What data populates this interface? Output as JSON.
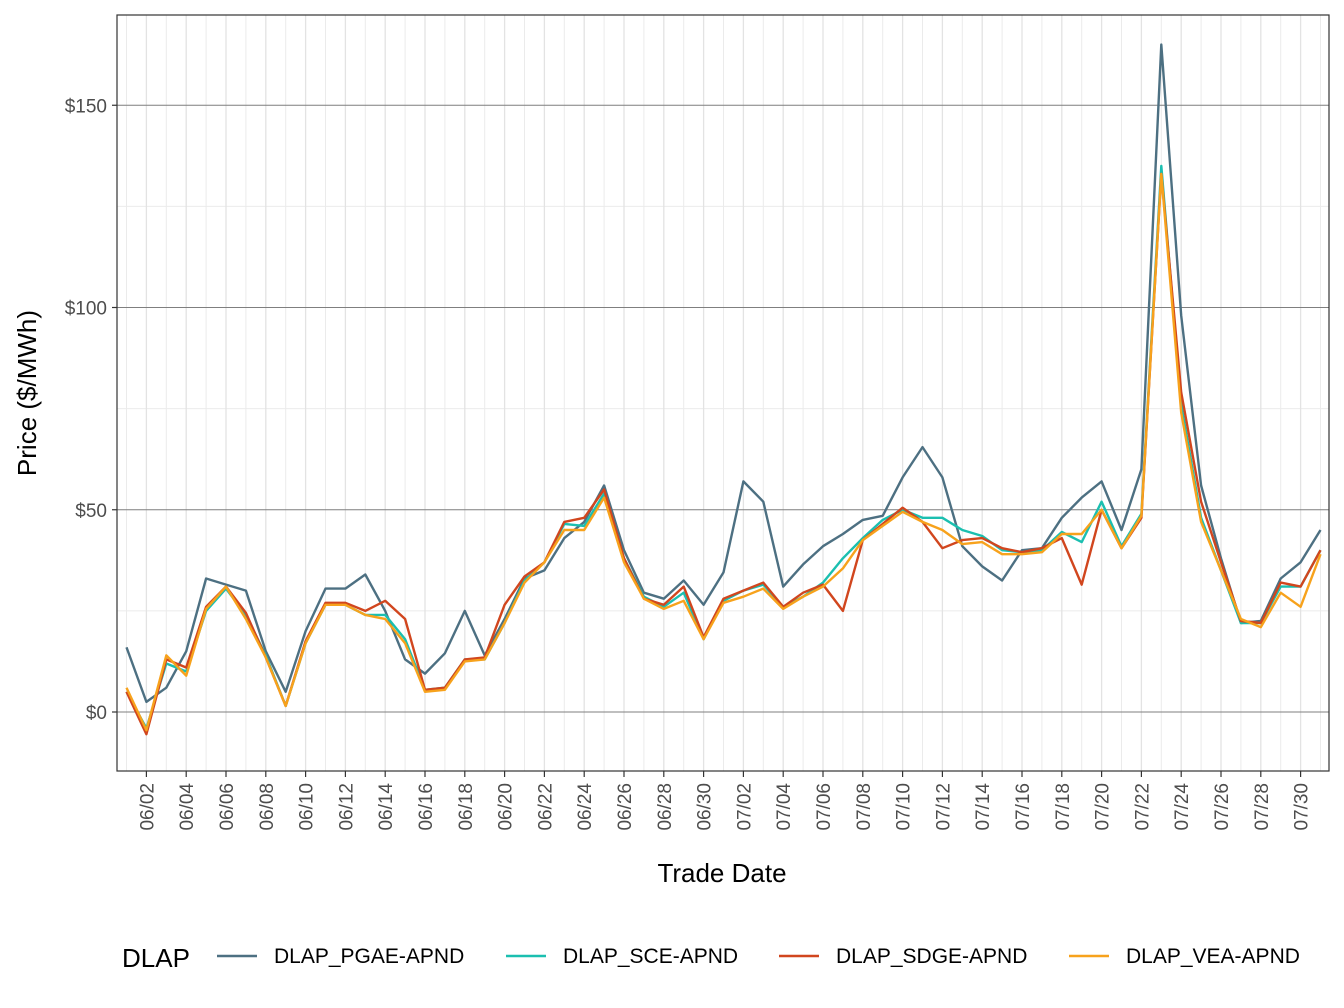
{
  "chart_data": {
    "type": "line",
    "title": "",
    "xlabel": "Trade Date",
    "ylabel": "Price ($/MWh)",
    "ylim": [
      -15,
      172
    ],
    "y_ticks": [
      0,
      50,
      100,
      150
    ],
    "y_tick_labels": [
      "$0",
      "$50",
      "$100",
      "$150"
    ],
    "x_tick_labels": [
      "06/02",
      "06/04",
      "06/06",
      "06/08",
      "06/10",
      "06/12",
      "06/14",
      "06/16",
      "06/18",
      "06/20",
      "06/22",
      "06/24",
      "06/26",
      "06/28",
      "06/30",
      "07/02",
      "07/04",
      "07/06",
      "07/08",
      "07/10",
      "07/12",
      "07/14",
      "07/16",
      "07/18",
      "07/20",
      "07/22",
      "07/24",
      "07/26",
      "07/28",
      "07/30"
    ],
    "x": [
      "06/01",
      "06/02",
      "06/03",
      "06/04",
      "06/05",
      "06/06",
      "06/07",
      "06/08",
      "06/09",
      "06/10",
      "06/11",
      "06/12",
      "06/13",
      "06/14",
      "06/15",
      "06/16",
      "06/17",
      "06/18",
      "06/19",
      "06/20",
      "06/21",
      "06/22",
      "06/23",
      "06/24",
      "06/25",
      "06/26",
      "06/27",
      "06/28",
      "06/29",
      "06/30",
      "07/01",
      "07/02",
      "07/03",
      "07/04",
      "07/05",
      "07/06",
      "07/07",
      "07/08",
      "07/09",
      "07/10",
      "07/11",
      "07/12",
      "07/13",
      "07/14",
      "07/15",
      "07/16",
      "07/17",
      "07/18",
      "07/19",
      "07/20",
      "07/21",
      "07/22",
      "07/23",
      "07/24",
      "07/25",
      "07/26",
      "07/27",
      "07/28",
      "07/29",
      "07/30",
      "07/31"
    ],
    "grid": true,
    "legend": {
      "title": "DLAP",
      "position": "bottom"
    },
    "series": [
      {
        "name": "DLAP_PGAE-APND",
        "color": "#4d7082",
        "values": [
          16,
          2.5,
          6,
          15,
          33,
          31.5,
          30,
          15,
          5,
          20,
          30.5,
          30.5,
          34,
          25,
          13,
          9.5,
          14.5,
          25,
          14,
          23,
          33,
          35,
          43,
          47,
          56,
          40,
          29.5,
          28,
          32.5,
          26.5,
          34.5,
          57,
          52,
          31,
          36.5,
          41,
          44,
          47.5,
          48.5,
          58,
          65.5,
          58,
          41,
          36,
          32.5,
          40,
          40.5,
          48,
          53,
          57,
          45,
          60,
          165,
          98,
          56,
          38,
          22,
          22.5,
          33,
          37,
          45
        ]
      },
      {
        "name": "DLAP_SCE-APND",
        "color": "#1bbfb0",
        "values": [
          5,
          -4,
          12,
          10,
          25,
          30.5,
          24,
          14,
          1.5,
          17,
          26.5,
          26.5,
          24,
          24,
          18,
          5.5,
          6,
          13,
          13,
          22,
          32.5,
          37,
          46.5,
          46,
          54,
          38,
          28.5,
          26,
          29.5,
          18,
          27.5,
          30,
          31.5,
          26,
          28.5,
          32,
          38,
          43,
          47.5,
          50,
          48,
          48,
          45,
          43.5,
          40,
          39.5,
          40,
          44.5,
          42,
          52,
          41,
          49,
          135,
          76,
          48,
          35,
          22,
          22,
          31,
          31,
          40
        ]
      },
      {
        "name": "DLAP_SDGE-APND",
        "color": "#d1461e",
        "values": [
          5,
          -5.5,
          13,
          11,
          26,
          31,
          24.5,
          13.5,
          1.5,
          17.5,
          27,
          27,
          25,
          27.5,
          23,
          5.5,
          6,
          13,
          13.5,
          26.5,
          33.5,
          37,
          47,
          48,
          55,
          38,
          28,
          26.5,
          31,
          18.5,
          28,
          30,
          32,
          26,
          29.5,
          31.5,
          25,
          42.5,
          46.5,
          50.5,
          47,
          40.5,
          42.5,
          43,
          40.5,
          39.5,
          40.5,
          43,
          31.5,
          50,
          40.5,
          48,
          133,
          79,
          52,
          37,
          22.5,
          22,
          32,
          31,
          40
        ]
      },
      {
        "name": "DLAP_VEA-APND",
        "color": "#f7a21c",
        "values": [
          6,
          -4.5,
          14,
          9,
          25.5,
          31,
          23,
          13.5,
          1.5,
          17,
          26.5,
          26.5,
          24,
          23,
          17,
          5,
          5.5,
          12.5,
          13,
          22,
          32,
          37,
          45,
          45,
          53,
          37,
          28,
          25.5,
          27.5,
          18,
          27,
          28.5,
          30.5,
          25.5,
          28.5,
          31,
          35.5,
          42.5,
          46,
          49.5,
          47,
          45,
          41.5,
          42,
          39,
          39,
          39.5,
          44,
          44,
          50,
          40.5,
          48.5,
          133,
          74,
          47,
          35,
          23,
          21,
          29.5,
          26,
          39
        ]
      }
    ]
  }
}
